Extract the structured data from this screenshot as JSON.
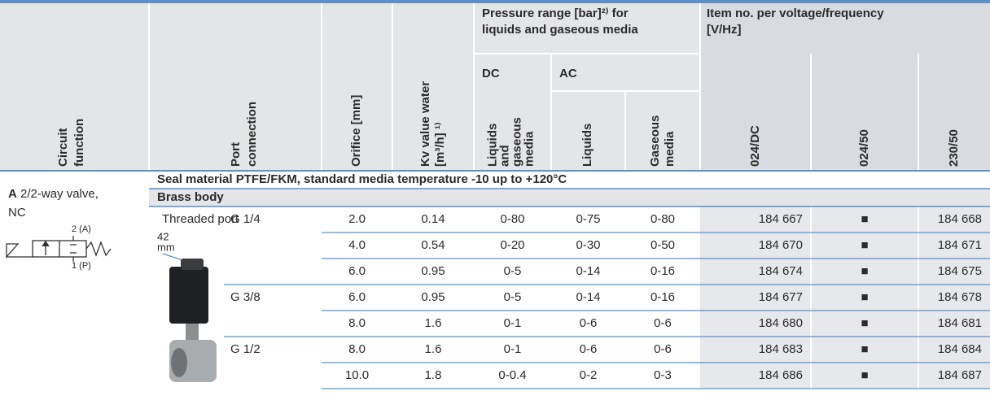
{
  "header": {
    "circuit": [
      "Circuit",
      "function"
    ],
    "port": [
      "Port",
      "connection"
    ],
    "orifice": [
      "Orifice [mm]"
    ],
    "kv": [
      "Kv value water",
      "[m³/h] ¹⁾"
    ],
    "pressure_group": [
      "Pressure range [bar]²⁾ for",
      "liquids and gaseous media"
    ],
    "dc": "DC",
    "ac": "AC",
    "dc_media": [
      "Liquids",
      "and",
      "gaseous",
      "media"
    ],
    "liquids": [
      "Liquids"
    ],
    "gaseous": [
      "Gaseous",
      "media"
    ],
    "item_group": [
      "Item no. per voltage/frequency",
      "[V/Hz]"
    ],
    "v1": [
      "024/DC"
    ],
    "v2": [
      "024/50"
    ],
    "v3": [
      "230/50"
    ]
  },
  "circuit": {
    "letter": "A",
    "label": "2/2-way valve,",
    "label2": "NC",
    "port_a": "2 (A)",
    "port_p": "1 (P)"
  },
  "seal_row": "Seal material PTFE/FKM, standard media temperature -10 up to +120°C",
  "body_row": "Brass body",
  "port_type": "Threaded port",
  "image_caption": [
    "42",
    "mm"
  ],
  "rows": [
    {
      "thread": "G 1/4",
      "cells": [
        "2.0",
        "0.14",
        "0-80",
        "0-75",
        "0-80",
        "184 667",
        "■",
        "184 668"
      ]
    },
    {
      "thread": null,
      "cells": [
        "4.0",
        "0.54",
        "0-20",
        "0-30",
        "0-50",
        "184 670",
        "■",
        "184 671"
      ]
    },
    {
      "thread": null,
      "cells": [
        "6.0",
        "0.95",
        "0-5",
        "0-14",
        "0-16",
        "184 674",
        "■",
        "184 675"
      ]
    },
    {
      "thread": "G 3/8",
      "cells": [
        "6.0",
        "0.95",
        "0-5",
        "0-14",
        "0-16",
        "184 677",
        "■",
        "184 678"
      ]
    },
    {
      "thread": null,
      "cells": [
        "8.0",
        "1.6",
        "0-1",
        "0-6",
        "0-6",
        "184 680",
        "■",
        "184 681"
      ]
    },
    {
      "thread": "G 1/2",
      "cells": [
        "8.0",
        "1.6",
        "0-1",
        "0-6",
        "0-6",
        "184 683",
        "■",
        "184 684"
      ]
    },
    {
      "thread": null,
      "cells": [
        "10.0",
        "1.8",
        "0-0.4",
        "0-2",
        "0-3",
        "184 686",
        "■",
        "184 687"
      ]
    }
  ]
}
